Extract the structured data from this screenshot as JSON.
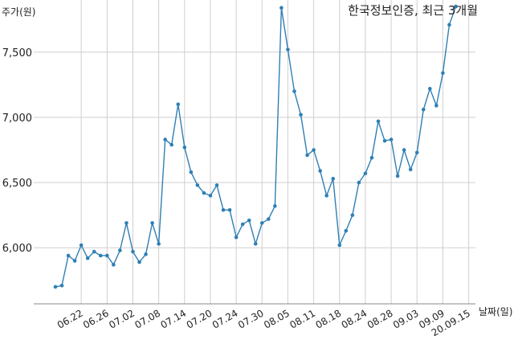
{
  "chart_data": {
    "type": "line",
    "title": "한국정보인증, 최근 3개월",
    "ylabel": "주가(원)",
    "xlabel": "날짜(일)",
    "ylim": [
      5570,
      7900
    ],
    "yticks": [
      6000,
      6500,
      7000,
      7500
    ],
    "ytick_labels": [
      "6,000",
      "6,500",
      "7,000",
      "7,500"
    ],
    "xtick_labels": [
      "06.22",
      "06.26",
      "07.02",
      "07.08",
      "07.14",
      "07.20",
      "07.24",
      "07.30",
      "08.05",
      "08.11",
      "08.18",
      "08.24",
      "08.28",
      "09.03",
      "09.09",
      "20.09.15"
    ],
    "xtick_index": [
      4,
      8,
      12,
      16,
      20,
      24,
      28,
      32,
      36,
      40,
      44,
      48,
      52,
      56,
      60,
      64
    ],
    "grid": true,
    "line_color": "#2f7fb5",
    "series": [
      {
        "values": [
          5700,
          5710,
          5940,
          5900,
          6020,
          5920,
          5970,
          5940,
          5940,
          5870,
          5980,
          6190,
          5970,
          5890,
          5950,
          6190,
          6030,
          6830,
          6790,
          7100,
          6770,
          6580,
          6480,
          6420,
          6400,
          6480,
          6290,
          6290,
          6080,
          6180,
          6210,
          6030,
          6190,
          6220,
          6320,
          7840,
          7520,
          7200,
          7020,
          6710,
          6750,
          6590,
          6400,
          6530,
          6020,
          6130,
          6250,
          6500,
          6570,
          6690,
          6970,
          6820,
          6830,
          6550,
          6750,
          6600,
          6730,
          7060,
          7220,
          7090,
          7340,
          7710,
          7850
        ]
      }
    ]
  }
}
